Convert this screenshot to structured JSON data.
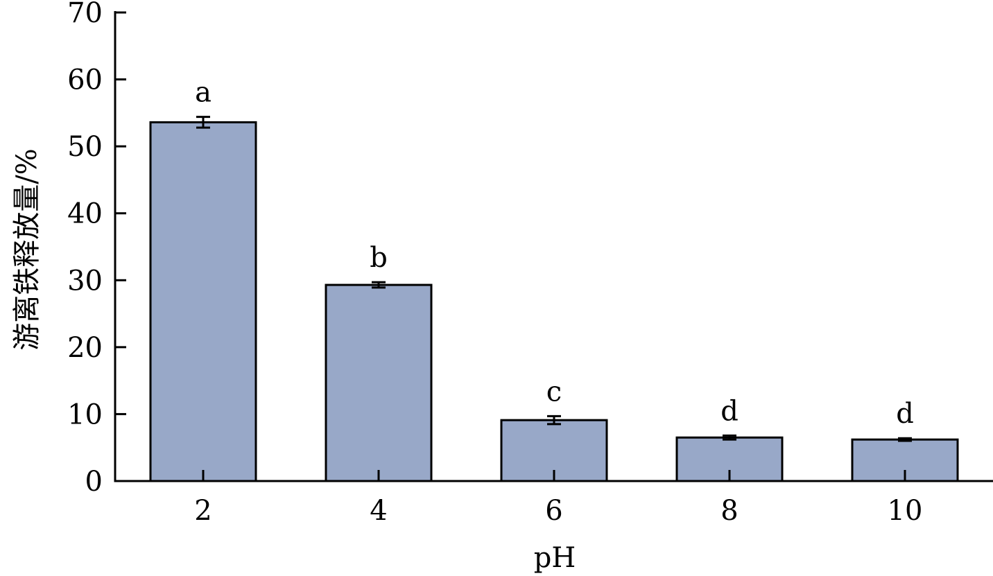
{
  "chart_data": {
    "type": "bar",
    "title": "",
    "xlabel": "pH",
    "ylabel": "游离铁释放量/%",
    "categories": [
      "2",
      "4",
      "6",
      "8",
      "10"
    ],
    "values": [
      53.6,
      29.3,
      9.1,
      6.5,
      6.2
    ],
    "errors": [
      0.8,
      0.4,
      0.6,
      0.3,
      0.2
    ],
    "significance_labels": [
      "a",
      "b",
      "c",
      "d",
      "d"
    ],
    "ylim": [
      0,
      70
    ],
    "yticks": [
      0,
      10,
      20,
      30,
      40,
      50,
      60,
      70
    ],
    "bar_color": "#98A8C8",
    "bar_edge_color": "#000000",
    "grid": false,
    "legend": "none"
  }
}
